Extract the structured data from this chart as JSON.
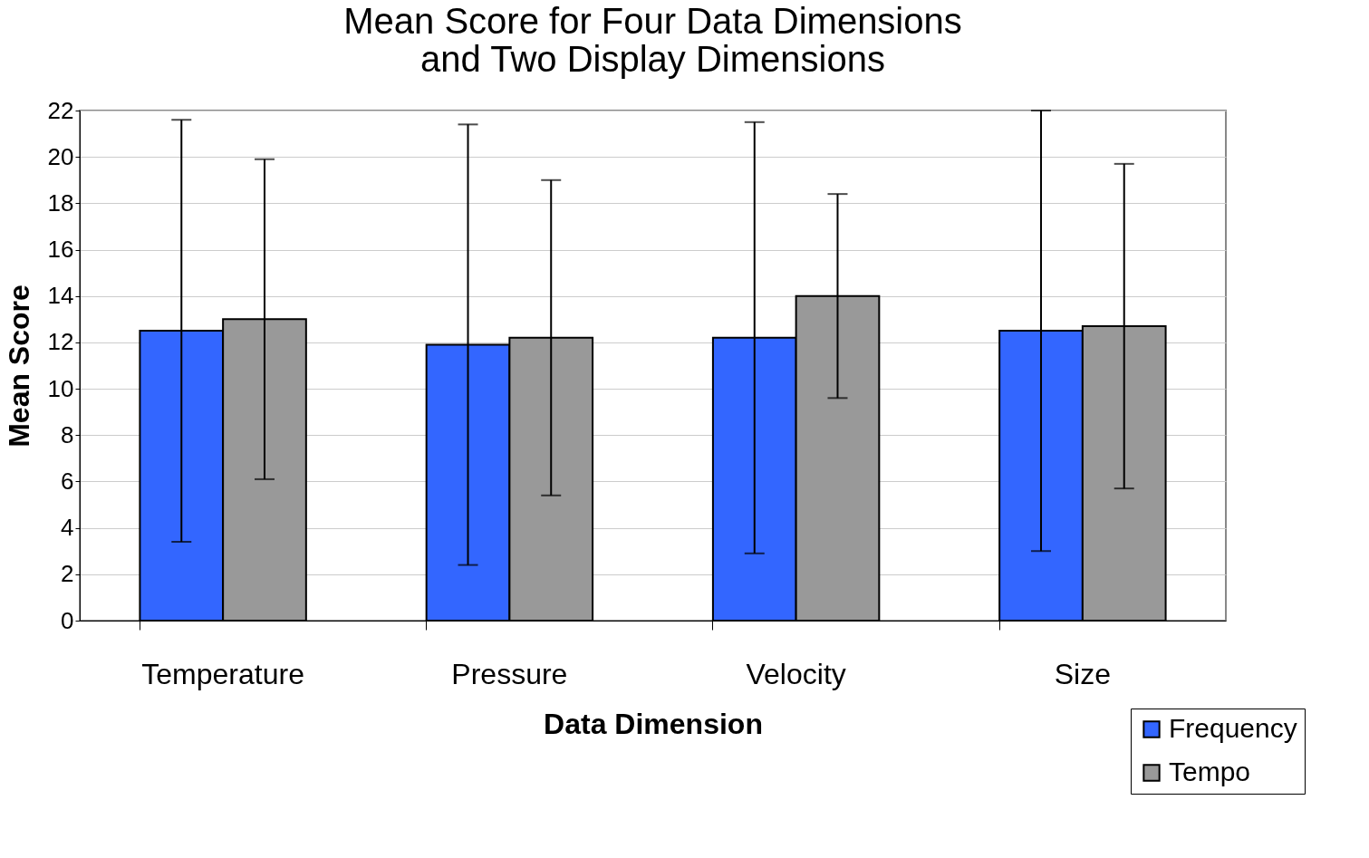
{
  "chart_data": {
    "type": "bar",
    "title": [
      "Mean Score for Four Data Dimensions",
      "and Two Display Dimensions"
    ],
    "xlabel": "Data Dimension",
    "ylabel": "Mean Score",
    "categories": [
      "Temperature",
      "Pressure",
      "Velocity",
      "Size"
    ],
    "series": [
      {
        "name": "Frequency",
        "color": "#3366ff",
        "values": [
          12.5,
          11.9,
          12.2,
          12.5
        ],
        "errors": [
          9.1,
          9.5,
          9.3,
          9.5
        ]
      },
      {
        "name": "Tempo",
        "color": "#999999",
        "values": [
          13.0,
          12.2,
          14.0,
          12.7
        ],
        "errors": [
          6.9,
          6.8,
          4.4,
          7.0
        ]
      }
    ],
    "ylim": [
      0,
      22
    ],
    "yticks": [
      0,
      2,
      4,
      6,
      8,
      10,
      12,
      14,
      16,
      18,
      20,
      22
    ],
    "grid": "y",
    "legend": "bottom right"
  }
}
